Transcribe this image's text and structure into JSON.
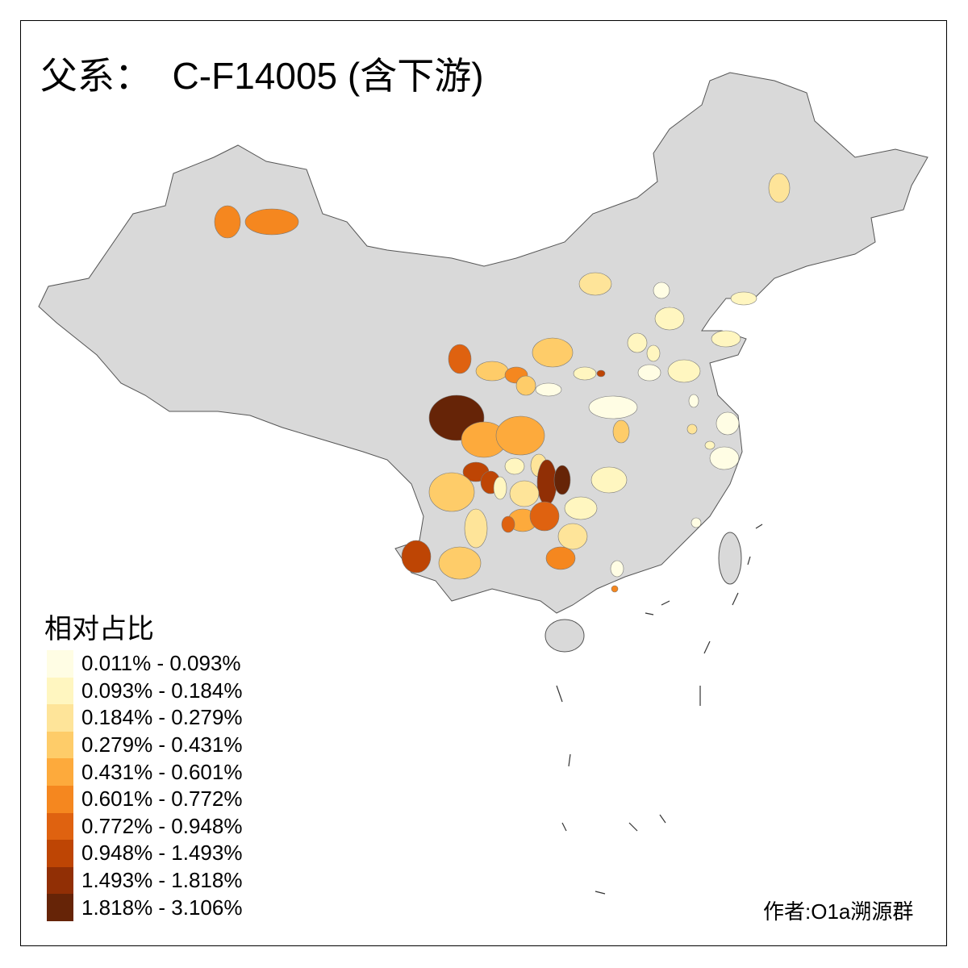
{
  "title": "父系：  C-F14005 (含下游)",
  "legend": {
    "title": "相对占比",
    "classes": [
      {
        "label": "0.011% - 0.093%",
        "color": "#FFFDE4"
      },
      {
        "label": "0.093% - 0.184%",
        "color": "#FFF6C0"
      },
      {
        "label": "0.184% - 0.279%",
        "color": "#FEE499"
      },
      {
        "label": "0.279% - 0.431%",
        "color": "#FECC69"
      },
      {
        "label": "0.431% - 0.601%",
        "color": "#FDAA3C"
      },
      {
        "label": "0.601% - 0.772%",
        "color": "#F5871F"
      },
      {
        "label": "0.772% - 0.948%",
        "color": "#DF6210"
      },
      {
        "label": "0.948% - 1.493%",
        "color": "#BE4504"
      },
      {
        "label": "1.493% - 1.818%",
        "color": "#912F05"
      },
      {
        "label": "1.818% - 3.106%",
        "color": "#662407"
      }
    ]
  },
  "map": {
    "base_color": "#D9D9D9",
    "border_color": "#555555",
    "no_data_meaning": "gray"
  },
  "credit": "作者:O1a溯源群"
}
